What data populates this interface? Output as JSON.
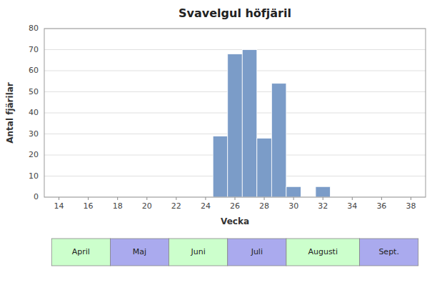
{
  "chart_data": {
    "type": "bar",
    "title": "Svavelgul höfjäril",
    "x_label": "Vecka",
    "y_label": "Antal fjärilar",
    "x": [
      25,
      26,
      27,
      28,
      29,
      30,
      32
    ],
    "values": [
      29,
      68,
      70,
      28,
      54,
      5,
      5
    ],
    "color": "#7b9cc8",
    "xlim": [
      13,
      39
    ],
    "ylim": [
      0,
      80
    ],
    "xticks": [
      14,
      16,
      18,
      20,
      22,
      24,
      26,
      28,
      30,
      32,
      34,
      36,
      38
    ],
    "yticks": [
      0,
      10,
      20,
      30,
      40,
      50,
      60,
      70,
      80
    ],
    "grid": true,
    "month_bands": [
      {
        "label": "April",
        "start": 13.5,
        "end": 17.5,
        "color": "#ccffcc"
      },
      {
        "label": "Maj",
        "start": 17.5,
        "end": 21.5,
        "color": "#aaaaee"
      },
      {
        "label": "Juni",
        "start": 21.5,
        "end": 25.5,
        "color": "#ccffcc"
      },
      {
        "label": "Juli",
        "start": 25.5,
        "end": 29.5,
        "color": "#aaaaee"
      },
      {
        "label": "Augusti",
        "start": 29.5,
        "end": 34.5,
        "color": "#ccffcc"
      },
      {
        "label": "Sept.",
        "start": 34.5,
        "end": 38.5,
        "color": "#aaaaee"
      }
    ]
  }
}
